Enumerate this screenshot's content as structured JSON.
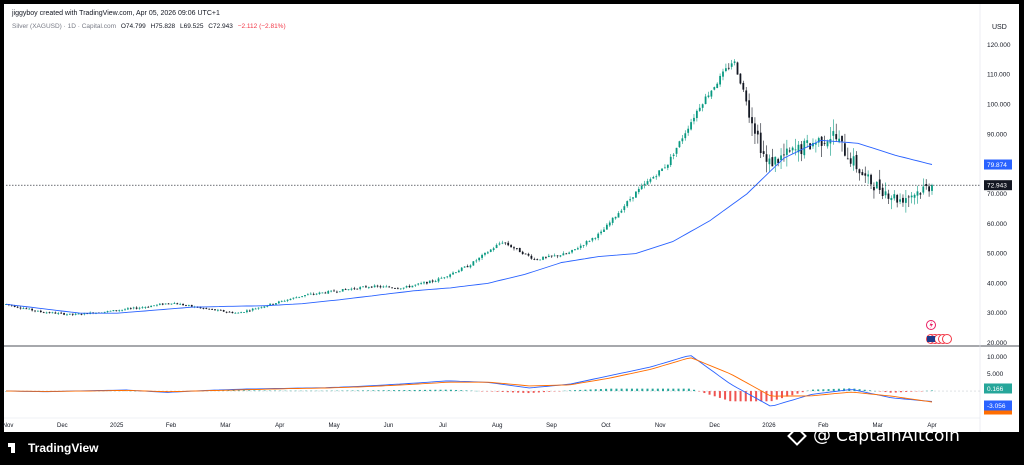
{
  "credit": "jiggyboy created with TradingView.com, Apr 05, 2026 09:06 UTC+1",
  "legend": {
    "symbol": "Silver (XAGUSD) · 1D · Capital.com",
    "open": "O74.799",
    "high": "H75.828",
    "low": "L69.525",
    "close": "C72.943",
    "change": "−2.112 (−2.81%)"
  },
  "currency": "USD",
  "branding": {
    "logo_text": "TradingView",
    "watermark": "CaptainAltcoin"
  },
  "colors": {
    "up": "#089981",
    "down": "#131722",
    "ma": "#2962ff",
    "macd": "#2962ff",
    "signal": "#ff6d00",
    "hist_pos": "#26a69a",
    "hist_neg": "#ef5350",
    "ma_label_bg": "#2962ff",
    "price_label_bg": "#131722"
  },
  "chart_data": [
    {
      "type": "candlestick",
      "title": "Silver (XAGUSD) · 1D · Capital.com",
      "ylabel": "USD",
      "ylim": [
        20,
        125
      ],
      "y_ticks": [
        "120.000",
        "110.000",
        "100.000",
        "90.000",
        "80.000",
        "70.000",
        "60.000",
        "50.000",
        "40.000",
        "30.000",
        "20.000"
      ],
      "x_ticks": [
        "Nov",
        "Dec",
        "2025",
        "Feb",
        "Mar",
        "Apr",
        "May",
        "Jun",
        "Jul",
        "Aug",
        "Sep",
        "Oct",
        "Nov",
        "Dec",
        "2026",
        "Feb",
        "Mar",
        "Apr"
      ],
      "dates": [
        "Nov 2024",
        "Dec 2024",
        "Jan 2025",
        "Feb 2025",
        "Mar 2025",
        "Apr 2025",
        "May 2025",
        "Jun 2025",
        "Jul 2025",
        "Aug 2025",
        "Sep 2025",
        "Oct 2025",
        "Nov 2025",
        "Dec 2025",
        "Jan 2026",
        "Feb 2026",
        "Mar 2026",
        "Apr 2026"
      ],
      "close_path": [
        33.0,
        30.5,
        29.5,
        30.5,
        31.8,
        33.5,
        31.5,
        30.0,
        33.0,
        36.0,
        37.5,
        39.0,
        38.5,
        41.0,
        46.0,
        54.0,
        48.0,
        50.0,
        57.0,
        70.0,
        80.0,
        100.0,
        115.0,
        80.0,
        85.0,
        90.0,
        75.0,
        68.0,
        72.943
      ],
      "moving_average_path": [
        33.0,
        31.5,
        30.0,
        30.0,
        31.0,
        32.0,
        32.3,
        32.5,
        33.2,
        34.5,
        36.0,
        37.5,
        38.5,
        40.0,
        43.0,
        47.0,
        49.0,
        50.0,
        54.0,
        61.0,
        70.0,
        82.0,
        88.0,
        87.0,
        83.0,
        79.874
      ],
      "last_price": {
        "label": "72.943",
        "value": 72.943
      },
      "ma_last": {
        "label": "79.874",
        "value": 79.874
      }
    },
    {
      "type": "line",
      "title": "",
      "ylim": [
        -7,
        12
      ],
      "y_ticks": [
        "10.000",
        "5.000"
      ],
      "series": [
        {
          "values": [
            0.0,
            -0.2,
            0.1,
            0.3,
            -0.4,
            0.2,
            0.6,
            0.8,
            1.0,
            1.5,
            2.2,
            3.0,
            2.5,
            0.9,
            2.0,
            4.5,
            7.0,
            10.5,
            2.0,
            -4.5,
            -1.0,
            0.5,
            -2.0,
            -3.056
          ]
        },
        {
          "values": [
            0.0,
            -0.1,
            0.0,
            0.2,
            -0.2,
            0.1,
            0.4,
            0.7,
            0.9,
            1.3,
            1.9,
            2.6,
            2.6,
            1.5,
            1.8,
            3.8,
            6.3,
            9.8,
            5.0,
            -1.5,
            -1.4,
            -0.3,
            -1.5,
            -3.2
          ]
        }
      ],
      "histogram": [
        0.0,
        -0.1,
        0.1,
        0.1,
        -0.2,
        0.1,
        0.2,
        0.1,
        0.1,
        0.2,
        0.3,
        0.4,
        -0.1,
        -0.6,
        0.2,
        0.7,
        0.7,
        0.7,
        -3.0,
        -3.0,
        0.4,
        0.8,
        -0.5,
        0.166
      ],
      "labels": {
        "macd": "-3.056",
        "hist": "0.166"
      }
    }
  ]
}
